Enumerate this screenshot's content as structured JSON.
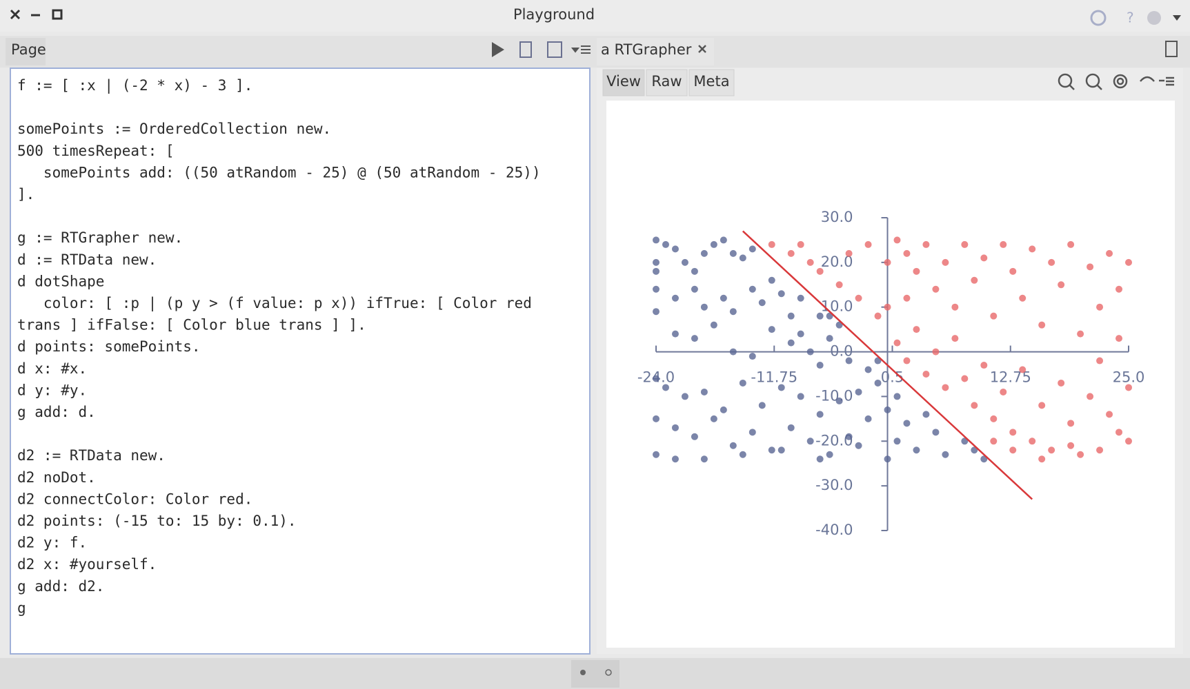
{
  "window": {
    "title": "Playground",
    "left_tab": "Page",
    "right_tab": "a RTGrapher",
    "view_tabs": [
      "View",
      "Raw",
      "Meta"
    ]
  },
  "code": {
    "blocks": [
      [
        "f := [ :x | (-2 * x) - 3 ]."
      ],
      [
        "somePoints := OrderedCollection new.",
        "500 timesRepeat: [",
        "   somePoints add: ((50 atRandom - 25) @ (50 atRandom - 25))",
        "]."
      ],
      [
        "g := RTGrapher new.",
        "d := RTData new.",
        "d dotShape",
        "   color: [ :p | (p y > (f value: p x)) ifTrue: [ Color red",
        "trans ] ifFalse: [ Color blue trans ] ].",
        "d points: somePoints.",
        "d x: #x.",
        "d y: #y.",
        "g add: d."
      ],
      [
        "d2 := RTData new.",
        "d2 noDot.",
        "d2 connectColor: Color red.",
        "d2 points: (-15 to: 15 by: 0.1).",
        "d2 y: f.",
        "d2 x: #yourself.",
        "g add: d2.",
        "g"
      ]
    ]
  },
  "chart_data": {
    "type": "scatter",
    "xlim": [
      -24,
      25
    ],
    "ylim": [
      -40,
      30
    ],
    "xticks": [
      {
        "value": -24,
        "label": "-24.0"
      },
      {
        "value": -11.75,
        "label": "-11.75"
      },
      {
        "value": 0.5,
        "label": "0.5"
      },
      {
        "value": 12.75,
        "label": "12.75"
      },
      {
        "value": 25,
        "label": "25.0"
      }
    ],
    "yticks": [
      {
        "value": 30,
        "label": "30.0"
      },
      {
        "value": 20,
        "label": "20.0"
      },
      {
        "value": 10,
        "label": "10.0"
      },
      {
        "value": 0,
        "label": "0.0"
      },
      {
        "value": -10,
        "label": "-10.0"
      },
      {
        "value": -20,
        "label": "-20.0"
      },
      {
        "value": -30,
        "label": "-30.0"
      },
      {
        "value": -40,
        "label": "-40.0"
      }
    ],
    "series": [
      {
        "type": "scatter",
        "color": "#5a6793",
        "x": [
          -24,
          -23,
          -22,
          -24,
          -24,
          -21,
          -20,
          -19,
          -18,
          -17,
          -16,
          -15,
          -14,
          -12,
          -10,
          -9,
          -24,
          -22,
          -20,
          -19,
          -17,
          -16,
          -14,
          -13,
          -11,
          -9,
          -7,
          -6,
          -24,
          -22,
          -20,
          -18,
          -16,
          -14,
          -12,
          -10,
          -8,
          -6,
          -4,
          -2,
          -24,
          -23,
          -21,
          -19,
          -17,
          -15,
          -13,
          -11,
          -9,
          -7,
          -5,
          -3,
          -1,
          -24,
          -22,
          -20,
          -18,
          -16,
          -14,
          -12,
          -10,
          -8,
          -6,
          -4,
          -2,
          0,
          -24,
          -22,
          -19,
          -15,
          -11,
          -7,
          -3,
          0,
          1,
          2,
          3,
          5,
          6,
          8,
          9,
          10,
          4,
          1,
          -1,
          -5,
          -7
        ],
        "values": [
          25,
          24,
          23,
          20,
          18,
          20,
          18,
          22,
          24,
          25,
          22,
          21,
          23,
          16,
          8,
          4,
          14,
          12,
          14,
          10,
          12,
          9,
          14,
          11,
          13,
          12,
          8,
          8,
          9,
          4,
          3,
          6,
          0,
          -1,
          5,
          2,
          0,
          3,
          -2,
          -4,
          -6,
          -8,
          -10,
          -9,
          -13,
          -7,
          -12,
          -8,
          -10,
          -14,
          -11,
          -9,
          -7,
          -15,
          -17,
          -19,
          -15,
          -21,
          -18,
          -22,
          -17,
          -20,
          -23,
          -19,
          -15,
          -13,
          -23,
          -24,
          -24,
          -23,
          -22,
          -24,
          -21,
          -24,
          -20,
          -16,
          -22,
          -18,
          -23,
          -20,
          -22,
          -24,
          -14,
          -10,
          -2,
          6,
          -3
        ]
      },
      {
        "type": "scatter",
        "color": "#e8696a",
        "x": [
          -12,
          -10,
          -8,
          -9,
          -7,
          -5,
          -4,
          -2,
          -3,
          -1,
          0,
          1,
          2,
          3,
          4,
          5,
          6,
          7,
          8,
          9,
          10,
          11,
          12,
          13,
          14,
          15,
          16,
          17,
          18,
          19,
          20,
          21,
          22,
          23,
          24,
          25,
          1,
          2,
          3,
          4,
          5,
          6,
          7,
          8,
          9,
          10,
          11,
          12,
          13,
          14,
          15,
          16,
          17,
          18,
          19,
          20,
          21,
          22,
          23,
          24,
          25,
          25,
          11,
          13,
          16,
          19,
          22,
          24,
          0,
          2
        ],
        "values": [
          24,
          22,
          20,
          24,
          18,
          15,
          22,
          24,
          12,
          8,
          20,
          25,
          22,
          18,
          24,
          14,
          20,
          10,
          24,
          16,
          21,
          8,
          24,
          18,
          12,
          23,
          6,
          20,
          15,
          24,
          4,
          19,
          10,
          22,
          14,
          20,
          2,
          -2,
          5,
          -5,
          0,
          -8,
          3,
          -6,
          -12,
          -3,
          -15,
          -9,
          -18,
          -4,
          -20,
          -12,
          -22,
          -7,
          -16,
          -23,
          -10,
          -2,
          -14,
          -18,
          -8,
          -20,
          -20,
          -22,
          -24,
          -21,
          -22,
          3,
          10,
          12
        ]
      },
      {
        "type": "line",
        "color": "#d9383a",
        "x": [
          -15,
          15
        ],
        "values": [
          27,
          -33
        ]
      }
    ]
  }
}
